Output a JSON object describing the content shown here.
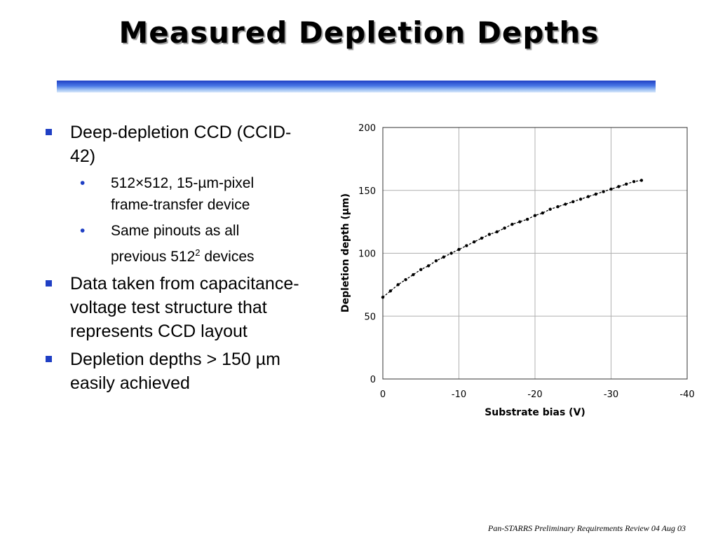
{
  "slide": {
    "title": "Measured Depletion Depths",
    "footer": "Pan-STARRS Preliminary Requirements Review 04 Aug 03"
  },
  "bullets": [
    {
      "text_a": "Deep-depletion CCD (CCID-",
      "text_b": "42)"
    },
    {
      "sub": [
        {
          "text_a": "512×512, 15-µm-pixel",
          "text_b": "frame-transfer device"
        },
        {
          "text_a": "Same pinouts as all",
          "text_b": "previous 512",
          "sup": "2",
          "text_c": " devices"
        }
      ]
    },
    {
      "text_a": "Data taken from capacitance-",
      "text_b": "voltage test structure that",
      "text_c": "represents CCD layout"
    },
    {
      "text_a": "Depletion depths > 150 µm",
      "text_b": "easily achieved"
    }
  ],
  "colors": {
    "accent": "#1f3fc4",
    "grid": "#b0b0b0"
  },
  "chart_data": {
    "type": "scatter",
    "xlabel": "Substrate bias (V)",
    "ylabel": "Depletion depth (µm)",
    "xlim": [
      0,
      -40
    ],
    "ylim": [
      0,
      200
    ],
    "xticks": [
      0,
      -10,
      -20,
      -30,
      -40
    ],
    "yticks": [
      0,
      50,
      100,
      150,
      200
    ],
    "grid": true,
    "series": [
      {
        "x": [
          0,
          -1,
          -2,
          -3,
          -4,
          -5,
          -6,
          -7,
          -8,
          -9,
          -10,
          -11,
          -12,
          -13,
          -14,
          -15,
          -16,
          -17,
          -18,
          -19,
          -20,
          -21,
          -22,
          -23,
          -24,
          -25,
          -26,
          -27,
          -28,
          -29,
          -30,
          -31,
          -32,
          -33,
          -34
        ],
        "y": [
          65,
          70,
          75,
          79,
          83,
          87,
          90,
          94,
          97,
          100,
          103,
          106,
          109,
          112,
          115,
          117,
          120,
          123,
          125,
          127,
          130,
          132,
          135,
          137,
          139,
          141,
          143,
          145,
          147,
          149,
          151,
          153,
          155,
          157,
          158
        ]
      }
    ]
  }
}
